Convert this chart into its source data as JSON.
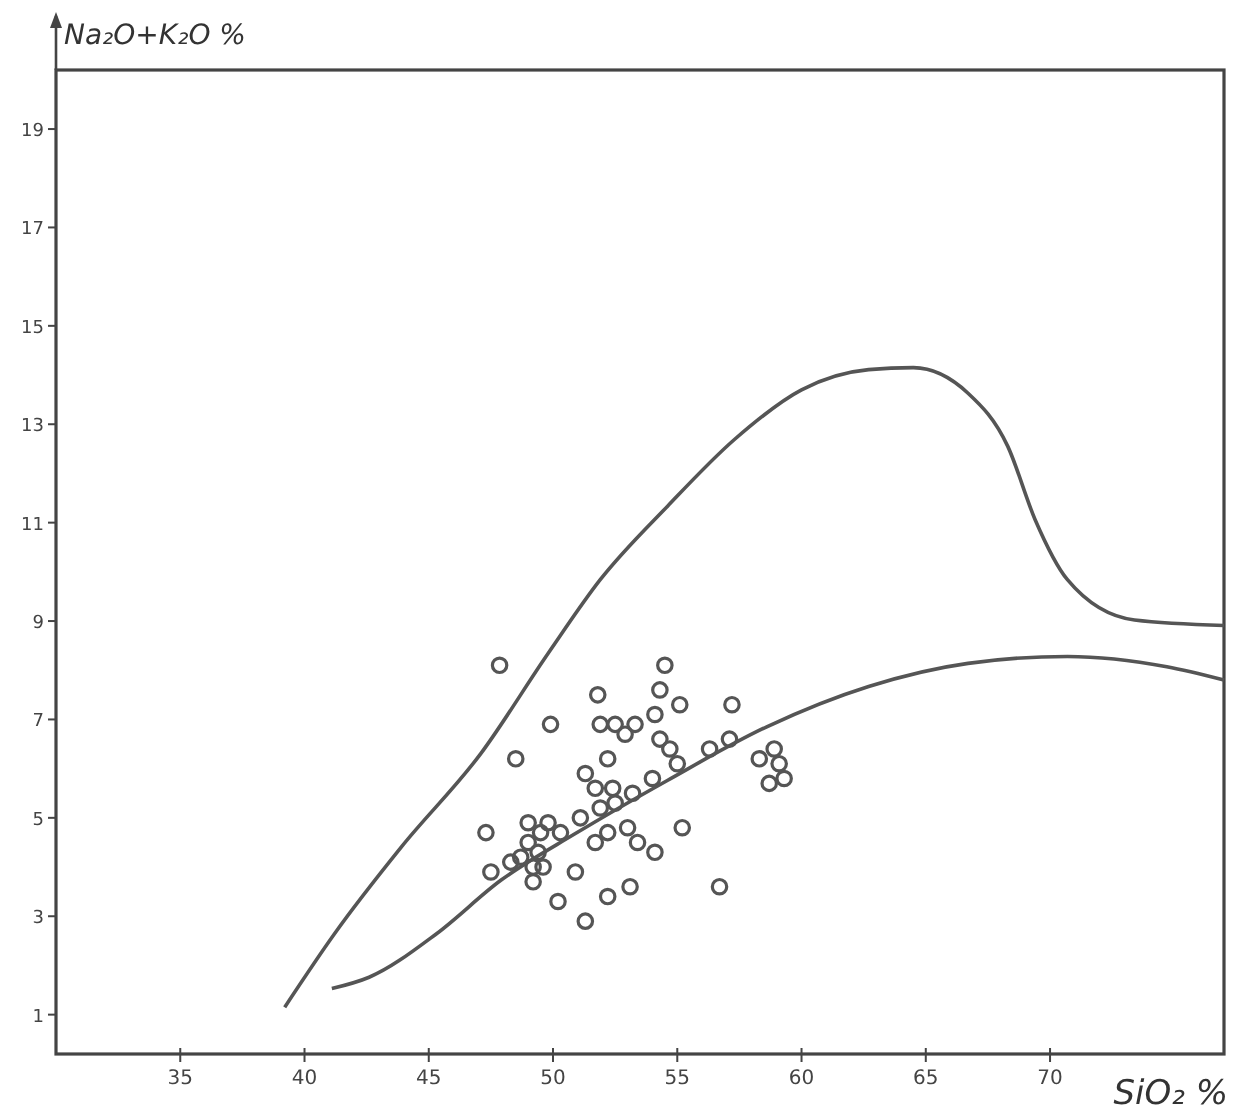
{
  "chart_data": {
    "type": "scatter",
    "xlabel": "SiO₂ %",
    "ylabel": "Na₂O+K₂O %",
    "xlim": [
      30,
      77
    ],
    "ylim": [
      0.2,
      20.2
    ],
    "xticks": [
      35,
      40,
      45,
      50,
      55,
      60,
      65,
      70
    ],
    "yticks": [
      1,
      3,
      5,
      7,
      9,
      11,
      13,
      15,
      17,
      19
    ],
    "grid": false,
    "series": [
      {
        "marker": "circle",
        "color": "#555555",
        "x": [
          47.85,
          54.5,
          51.8,
          54.3,
          55.1,
          57.2,
          49.9,
          51.9,
          52.5,
          53.3,
          52.9,
          54.1,
          54.3,
          54.7,
          55.0,
          56.3,
          57.1,
          48.5,
          52.2,
          51.3,
          51.7,
          52.4,
          53.2,
          54.0,
          51.9,
          51.1,
          52.5,
          58.3,
          58.9,
          59.1,
          59.3,
          58.7,
          47.3,
          49.0,
          49.8,
          49.5,
          50.3,
          49.0,
          49.4,
          48.7,
          48.3,
          47.5,
          49.6,
          49.2,
          50.9,
          51.7,
          52.2,
          53.0,
          53.4,
          54.1,
          55.2,
          52.2,
          53.1,
          50.2,
          51.3,
          56.7,
          49.2
        ],
        "values": [
          8.1,
          8.1,
          7.5,
          7.6,
          7.3,
          7.3,
          6.9,
          6.9,
          6.9,
          6.9,
          6.7,
          7.1,
          6.6,
          6.4,
          6.1,
          6.4,
          6.6,
          6.2,
          6.2,
          5.9,
          5.6,
          5.6,
          5.5,
          5.8,
          5.2,
          5.0,
          5.3,
          6.2,
          6.4,
          6.1,
          5.8,
          5.7,
          4.7,
          4.9,
          4.9,
          4.7,
          4.7,
          4.5,
          4.3,
          4.2,
          4.1,
          3.9,
          4.0,
          3.7,
          3.9,
          4.5,
          4.7,
          4.8,
          4.5,
          4.3,
          4.8,
          3.4,
          3.6,
          3.3,
          2.9,
          3.6,
          4.0
        ]
      },
      {
        "type": "line",
        "marker": "none",
        "line_style": "solid",
        "color": "#555555",
        "x": [
          39.2,
          41.2,
          43.9,
          47.1,
          49.8,
          51.9,
          54.6,
          57.3,
          60.0,
          62.7,
          64.5,
          66.7,
          68.3,
          69.4,
          70.7,
          73.4,
          77.0
        ],
        "values": [
          1.15,
          2.64,
          4.41,
          6.31,
          8.34,
          9.84,
          11.33,
          12.69,
          13.7,
          14.11,
          14.15,
          13.63,
          12.55,
          11.06,
          9.84,
          9.02,
          8.91
        ]
      },
      {
        "type": "line",
        "marker": "none",
        "line_style": "solid",
        "color": "#555555",
        "x": [
          41.1,
          42.6,
          45.3,
          47.9,
          50.9,
          54.6,
          58.6,
          62.7,
          66.7,
          70.7,
          74.7,
          77.0
        ],
        "values": [
          1.53,
          1.76,
          2.64,
          3.73,
          4.68,
          5.76,
          6.85,
          7.67,
          8.14,
          8.28,
          8.07,
          7.8
        ]
      }
    ]
  }
}
